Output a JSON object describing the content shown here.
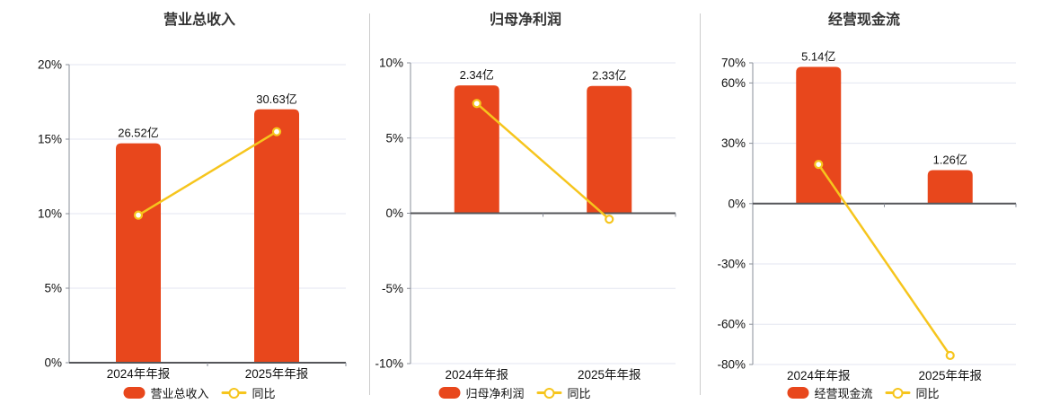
{
  "colors": {
    "bar": "#e8471c",
    "line": "#f6c51d",
    "grid": "#e3e6f0",
    "axis": "#8a8f99",
    "zero_axis": "#55565a",
    "text": "#111111",
    "title": "#333333",
    "divider": "#cccccc",
    "marker_fill": "#ffffff"
  },
  "chart_data": [
    {
      "type": "bar",
      "title": "营业总收入",
      "categories": [
        "2024年年报",
        "2025年年报"
      ],
      "series": [
        {
          "name": "营业总收入",
          "type": "bar",
          "unit": "亿",
          "values": [
            26.52,
            30.63
          ],
          "labels": [
            "26.52亿",
            "30.63亿"
          ]
        },
        {
          "name": "同比",
          "type": "line",
          "unit": "%",
          "values": [
            9.9,
            15.5
          ]
        }
      ],
      "y_axis": {
        "unit": "%",
        "min": 0,
        "max": 20,
        "ticks": [
          20,
          15,
          10,
          5,
          0
        ],
        "tick_labels": [
          "20%",
          "15%",
          "10%",
          "5%",
          "0%"
        ],
        "grid": true
      },
      "legend": {
        "position": "bottom",
        "items": [
          "营业总收入",
          "同比"
        ]
      }
    },
    {
      "type": "bar",
      "title": "归母净利润",
      "categories": [
        "2024年年报",
        "2025年年报"
      ],
      "series": [
        {
          "name": "归母净利润",
          "type": "bar",
          "unit": "亿",
          "values": [
            2.34,
            2.33
          ],
          "labels": [
            "2.34亿",
            "2.33亿"
          ]
        },
        {
          "name": "同比",
          "type": "line",
          "unit": "%",
          "values": [
            7.3,
            -0.4
          ]
        }
      ],
      "y_axis": {
        "unit": "%",
        "min": -10,
        "max": 10,
        "ticks": [
          10,
          5,
          0,
          -5,
          -10
        ],
        "tick_labels": [
          "10%",
          "5%",
          "0%",
          "-5%",
          "-10%"
        ],
        "grid": true
      },
      "legend": {
        "position": "bottom",
        "items": [
          "归母净利润",
          "同比"
        ]
      }
    },
    {
      "type": "bar",
      "title": "经营现金流",
      "categories": [
        "2024年年报",
        "2025年年报"
      ],
      "series": [
        {
          "name": "经营现金流",
          "type": "bar",
          "unit": "亿",
          "values": [
            5.14,
            1.26
          ],
          "labels": [
            "5.14亿",
            "1.26亿"
          ]
        },
        {
          "name": "同比",
          "type": "line",
          "unit": "%",
          "values": [
            19.5,
            -75.5
          ]
        }
      ],
      "y_axis": {
        "unit": "%",
        "min": -80,
        "max": 70,
        "ticks": [
          70,
          60,
          30,
          0,
          -30,
          -60,
          -80
        ],
        "tick_labels": [
          "70%",
          "60%",
          "30%",
          "0%",
          "-30%",
          "-60%",
          "-80%"
        ],
        "grid": true
      },
      "legend": {
        "position": "bottom",
        "items": [
          "经营现金流",
          "同比"
        ]
      }
    }
  ]
}
